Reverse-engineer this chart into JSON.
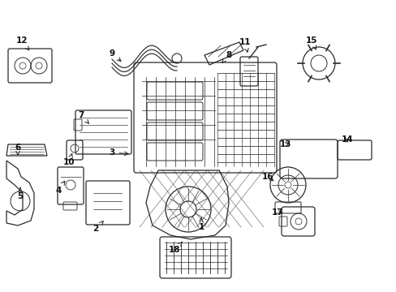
{
  "bg_color": "#ffffff",
  "line_color": "#2a2a2a",
  "label_color": "#111111",
  "fig_w": 4.89,
  "fig_h": 3.6,
  "dpi": 100,
  "labels": {
    "1": [
      243,
      268,
      255,
      252
    ],
    "2": [
      122,
      270,
      135,
      257
    ],
    "3": [
      138,
      185,
      158,
      192
    ],
    "4": [
      80,
      228,
      95,
      218
    ],
    "5": [
      30,
      238,
      42,
      225
    ],
    "6": [
      28,
      178,
      42,
      190
    ],
    "7": [
      106,
      147,
      120,
      160
    ],
    "8": [
      280,
      77,
      265,
      87
    ],
    "9": [
      136,
      72,
      155,
      82
    ],
    "10": [
      91,
      197,
      98,
      183
    ],
    "11": [
      301,
      60,
      308,
      73
    ],
    "12": [
      29,
      57,
      40,
      72
    ],
    "13": [
      357,
      185,
      365,
      172
    ],
    "14": [
      430,
      178,
      420,
      186
    ],
    "15": [
      388,
      57,
      389,
      70
    ],
    "16": [
      334,
      215,
      350,
      222
    ],
    "17": [
      347,
      258,
      358,
      250
    ],
    "18": [
      218,
      302,
      230,
      295
    ]
  }
}
